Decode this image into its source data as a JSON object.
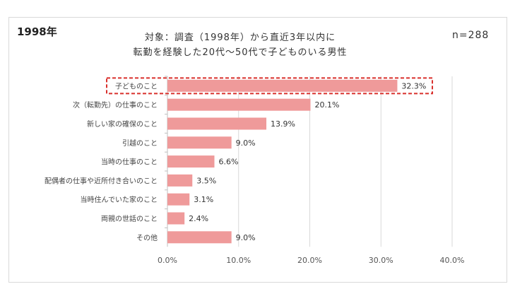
{
  "chart_data": {
    "type": "bar",
    "orientation": "horizontal",
    "panel_label": "1998年",
    "title_lines": [
      "対象：調査（1998年）から直近3年以内に",
      "転勤を経験した20代～50代で子どものいる男性"
    ],
    "sample_size": "n=288",
    "categories": [
      "子どものこと",
      "次（転勤先）の仕事のこと",
      "新しい家の確保のこと",
      "引越のこと",
      "当時の仕事のこと",
      "配偶者の仕事や近所付き合いのこと",
      "当時住んでいた家のこと",
      "両親の世話のこと",
      "その他"
    ],
    "values": [
      32.3,
      20.1,
      13.9,
      9.0,
      6.6,
      3.5,
      3.1,
      2.4,
      9.0
    ],
    "value_labels": [
      "32.3%",
      "20.1%",
      "13.9%",
      "9.0%",
      "6.6%",
      "3.5%",
      "3.1%",
      "2.4%",
      "9.0%"
    ],
    "xlim": [
      0,
      40
    ],
    "x_ticks": [
      0,
      10,
      20,
      30,
      40
    ],
    "x_tick_labels": [
      "0.0%",
      "10.0%",
      "20.0%",
      "30.0%",
      "40.0%"
    ],
    "highlighted_category": "子どものこと",
    "grid": "vertical",
    "bar_color": "#ef9a9a",
    "highlight_color": "#d9302c",
    "grid_color": "#d9d9d9"
  }
}
